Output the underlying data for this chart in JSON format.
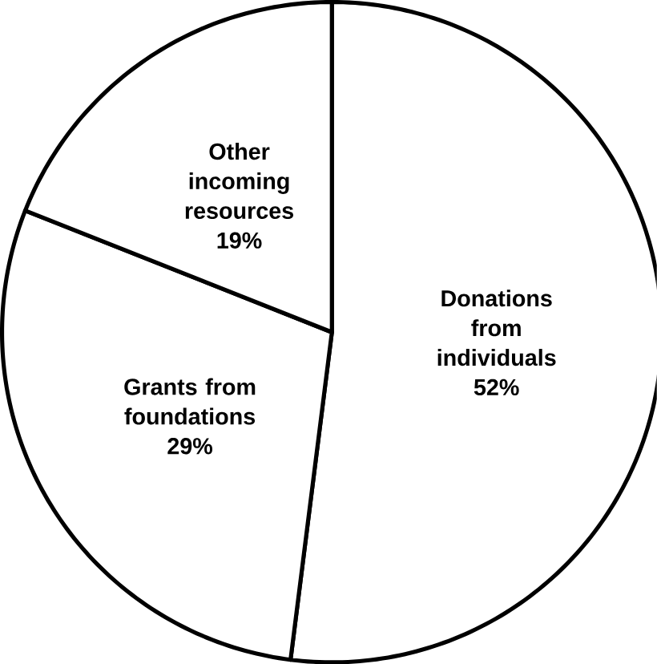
{
  "chart_data": {
    "type": "pie",
    "categories": [
      "Donations from individuals",
      "Grants from foundations",
      "Other incoming resources"
    ],
    "values": [
      52,
      29,
      19
    ],
    "value_labels": [
      "52%",
      "29%",
      "19%"
    ],
    "colors": [
      "#ffffff",
      "#ffffff",
      "#ffffff"
    ]
  }
}
